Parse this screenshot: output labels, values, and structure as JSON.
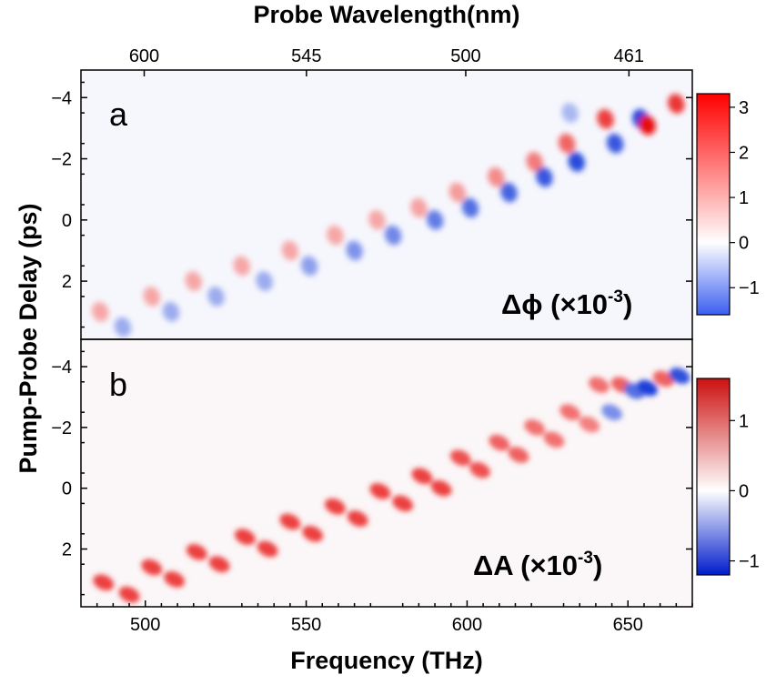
{
  "chart_data": [
    {
      "type": "heatmap",
      "panel_label": "a",
      "annotation": {
        "base": "Δϕ (×10",
        "exponent": "-3",
        "suffix": ")"
      },
      "xlabel": "Frequency (THz)",
      "x2label": "Probe Wavelength(nm)",
      "x2_ticks": [
        "600",
        "545",
        "500",
        "461"
      ],
      "ylabel": "Pump-Probe Delay (ps)",
      "xlim": [
        480,
        670
      ],
      "ylim": [
        -4.9,
        3.9
      ],
      "y_ticks": [
        -4,
        -2,
        0,
        2
      ],
      "y_tick_labels": [
        "−4",
        "−2",
        "0",
        "2"
      ],
      "colorbar": {
        "range": [
          -1.6,
          3.3
        ],
        "ticks": [
          3,
          2,
          1,
          0,
          -1
        ],
        "tick_labels": [
          "3",
          "2",
          "1",
          "0",
          "−1"
        ],
        "colormap": "blue-white-red"
      },
      "features": [
        {
          "x": 486,
          "y": 3.0,
          "value": 0.9
        },
        {
          "x": 493,
          "y": 3.5,
          "value": -0.7
        },
        {
          "x": 502,
          "y": 2.5,
          "value": 0.9
        },
        {
          "x": 508,
          "y": 3.0,
          "value": -0.7
        },
        {
          "x": 515,
          "y": 2.0,
          "value": 0.9
        },
        {
          "x": 522,
          "y": 2.5,
          "value": -0.7
        },
        {
          "x": 530,
          "y": 1.5,
          "value": 0.9
        },
        {
          "x": 537,
          "y": 2.0,
          "value": -0.7
        },
        {
          "x": 545,
          "y": 1.0,
          "value": 0.9
        },
        {
          "x": 551,
          "y": 1.5,
          "value": -0.8
        },
        {
          "x": 559,
          "y": 0.5,
          "value": 1.0
        },
        {
          "x": 565,
          "y": 1.0,
          "value": -0.9
        },
        {
          "x": 572,
          "y": 0.0,
          "value": 1.1
        },
        {
          "x": 577,
          "y": 0.5,
          "value": -1.0
        },
        {
          "x": 585,
          "y": -0.4,
          "value": 1.2
        },
        {
          "x": 590,
          "y": 0.0,
          "value": -1.1
        },
        {
          "x": 597,
          "y": -0.9,
          "value": 1.3
        },
        {
          "x": 601,
          "y": -0.4,
          "value": -1.2
        },
        {
          "x": 609,
          "y": -1.4,
          "value": 1.5
        },
        {
          "x": 613,
          "y": -0.9,
          "value": -1.3
        },
        {
          "x": 621,
          "y": -1.9,
          "value": 1.7
        },
        {
          "x": 624,
          "y": -1.4,
          "value": -1.4
        },
        {
          "x": 631,
          "y": -2.5,
          "value": 2.0
        },
        {
          "x": 634,
          "y": -1.9,
          "value": -1.5
        },
        {
          "x": 643,
          "y": -3.3,
          "value": 2.5
        },
        {
          "x": 646,
          "y": -2.5,
          "value": -1.4
        },
        {
          "x": 654,
          "y": -3.3,
          "value": -1.6
        },
        {
          "x": 656,
          "y": -3.1,
          "value": 3.2
        },
        {
          "x": 665,
          "y": -3.8,
          "value": 2.6
        },
        {
          "x": 632,
          "y": -3.5,
          "value": -0.6
        }
      ]
    },
    {
      "type": "heatmap",
      "panel_label": "b",
      "annotation": {
        "base": "ΔA (×10",
        "exponent": "-3",
        "suffix": ")"
      },
      "xlabel": "Frequency (THz)",
      "x_ticks": [
        500,
        550,
        600,
        650
      ],
      "ylabel": "Pump-Probe Delay (ps)",
      "xlim": [
        480,
        670
      ],
      "ylim": [
        -4.9,
        3.9
      ],
      "y_ticks": [
        -4,
        -2,
        0,
        2
      ],
      "y_tick_labels": [
        "−4",
        "−2",
        "0",
        "2"
      ],
      "colorbar": {
        "range": [
          -1.2,
          1.6
        ],
        "ticks": [
          1,
          0,
          -1
        ],
        "tick_labels": [
          "1",
          "0",
          "−1"
        ],
        "colormap": "blue-white-red"
      },
      "features": [
        {
          "x": 487,
          "y": 3.1,
          "value": 1.2
        },
        {
          "x": 495,
          "y": 3.5,
          "value": 1.2
        },
        {
          "x": 502,
          "y": 2.6,
          "value": 1.2
        },
        {
          "x": 509,
          "y": 3.0,
          "value": 1.2
        },
        {
          "x": 516,
          "y": 2.1,
          "value": 1.2
        },
        {
          "x": 523,
          "y": 2.5,
          "value": 1.2
        },
        {
          "x": 531,
          "y": 1.6,
          "value": 1.2
        },
        {
          "x": 538,
          "y": 2.0,
          "value": 1.2
        },
        {
          "x": 545,
          "y": 1.1,
          "value": 1.2
        },
        {
          "x": 552,
          "y": 1.5,
          "value": 1.2
        },
        {
          "x": 559,
          "y": 0.6,
          "value": 1.2
        },
        {
          "x": 566,
          "y": 1.0,
          "value": 1.2
        },
        {
          "x": 573,
          "y": 0.1,
          "value": 1.2
        },
        {
          "x": 580,
          "y": 0.5,
          "value": 1.2
        },
        {
          "x": 586,
          "y": -0.4,
          "value": 1.2
        },
        {
          "x": 592,
          "y": 0.0,
          "value": 1.2
        },
        {
          "x": 598,
          "y": -1.0,
          "value": 1.1
        },
        {
          "x": 604,
          "y": -0.6,
          "value": 1.1
        },
        {
          "x": 610,
          "y": -1.5,
          "value": 1.0
        },
        {
          "x": 616,
          "y": -1.1,
          "value": 1.0
        },
        {
          "x": 621,
          "y": -2.0,
          "value": 0.9
        },
        {
          "x": 627,
          "y": -1.6,
          "value": 0.9
        },
        {
          "x": 632,
          "y": -2.5,
          "value": 0.9
        },
        {
          "x": 638,
          "y": -2.1,
          "value": 0.8
        },
        {
          "x": 641,
          "y": -3.4,
          "value": 0.9
        },
        {
          "x": 645,
          "y": -2.5,
          "value": -0.7
        },
        {
          "x": 648,
          "y": -3.4,
          "value": 1.0
        },
        {
          "x": 652,
          "y": -3.2,
          "value": -0.9
        },
        {
          "x": 656,
          "y": -3.3,
          "value": -1.2
        },
        {
          "x": 661,
          "y": -3.6,
          "value": 1.0
        },
        {
          "x": 666,
          "y": -3.7,
          "value": -1.1
        }
      ]
    }
  ],
  "colors": {
    "positive_max": "#e60000",
    "negative_max": "#1a3fd9",
    "neutral": "#ffffff"
  }
}
